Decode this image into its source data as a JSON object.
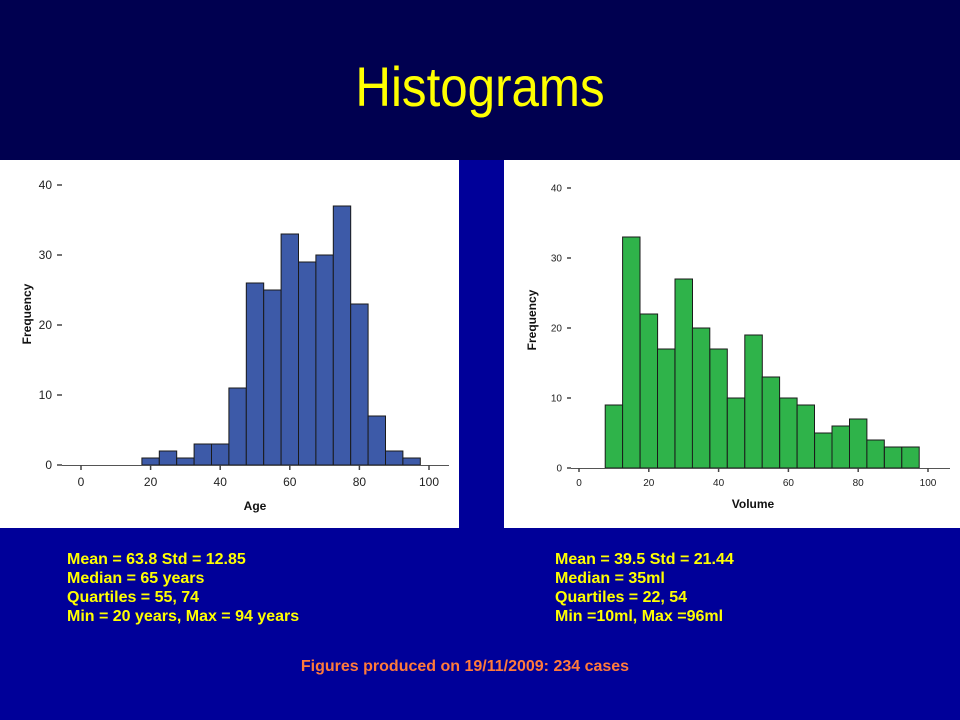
{
  "slide": {
    "title": "Histograms",
    "footer": "Figures produced on 19/11/2009: 234 cases"
  },
  "colors": {
    "title_band": "#000050",
    "background": "#000099",
    "title": "#ffff00",
    "stats_text": "#ffff00",
    "footer_text": "#ff7a3a",
    "age_bars": "#3d5aa8",
    "volume_bars": "#2fb34a"
  },
  "stats": {
    "age": [
      "Mean = 63.8  Std = 12.85",
      "Median = 65 years",
      "Quartiles = 55, 74",
      "Min = 20 years, Max = 94 years"
    ],
    "volume": [
      "Mean = 39.5  Std = 21.44",
      "Median = 35ml",
      "Quartiles = 22, 54",
      "Min =10ml, Max =96ml"
    ]
  },
  "chart_data": [
    {
      "id": "age",
      "type": "bar",
      "xlabel": "Age",
      "ylabel": "Frequency",
      "xlim": [
        -5,
        105
      ],
      "ylim": [
        0,
        40
      ],
      "xticks": [
        0,
        20,
        40,
        60,
        80,
        100
      ],
      "yticks": [
        0,
        10,
        20,
        30,
        40
      ],
      "bin_width": 5,
      "bins": [
        {
          "x0": 17.5,
          "value": 1
        },
        {
          "x0": 22.5,
          "value": 2
        },
        {
          "x0": 27.5,
          "value": 1
        },
        {
          "x0": 32.5,
          "value": 3
        },
        {
          "x0": 37.5,
          "value": 3
        },
        {
          "x0": 42.5,
          "value": 11
        },
        {
          "x0": 47.5,
          "value": 26
        },
        {
          "x0": 52.5,
          "value": 25
        },
        {
          "x0": 57.5,
          "value": 33
        },
        {
          "x0": 62.5,
          "value": 29
        },
        {
          "x0": 67.5,
          "value": 30
        },
        {
          "x0": 72.5,
          "value": 37
        },
        {
          "x0": 77.5,
          "value": 23
        },
        {
          "x0": 82.5,
          "value": 7
        },
        {
          "x0": 87.5,
          "value": 2
        },
        {
          "x0": 92.5,
          "value": 1
        }
      ]
    },
    {
      "id": "volume",
      "type": "bar",
      "xlabel": "Volume",
      "ylabel": "Frequency",
      "xlim": [
        -5,
        105
      ],
      "ylim": [
        0,
        40
      ],
      "xticks": [
        0,
        20,
        40,
        60,
        80,
        100
      ],
      "yticks": [
        0,
        10,
        20,
        30,
        40
      ],
      "bin_width": 5,
      "bins": [
        {
          "x0": 7.5,
          "value": 9
        },
        {
          "x0": 12.5,
          "value": 33
        },
        {
          "x0": 17.5,
          "value": 22
        },
        {
          "x0": 22.5,
          "value": 17
        },
        {
          "x0": 27.5,
          "value": 27
        },
        {
          "x0": 32.5,
          "value": 20
        },
        {
          "x0": 37.5,
          "value": 17
        },
        {
          "x0": 42.5,
          "value": 10
        },
        {
          "x0": 47.5,
          "value": 19
        },
        {
          "x0": 52.5,
          "value": 13
        },
        {
          "x0": 57.5,
          "value": 10
        },
        {
          "x0": 62.5,
          "value": 9
        },
        {
          "x0": 67.5,
          "value": 5
        },
        {
          "x0": 72.5,
          "value": 6
        },
        {
          "x0": 77.5,
          "value": 7
        },
        {
          "x0": 82.5,
          "value": 4
        },
        {
          "x0": 87.5,
          "value": 3
        },
        {
          "x0": 92.5,
          "value": 3
        }
      ]
    }
  ]
}
